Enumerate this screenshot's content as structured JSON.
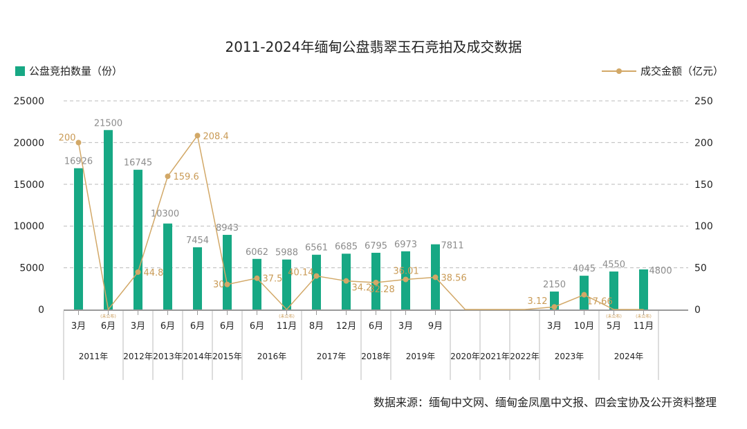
{
  "chart_data": {
    "type": "bar+line",
    "title": "2011-2024年缅甸公盘翡翠玉石竞拍及成交数据",
    "source": "数据来源：缅甸中文网、缅甸金凤凰中文报、四会宝协及公开资料整理",
    "unpublished_label": "(未公布)",
    "colors": {
      "bar": "#17a884",
      "line": "#d2a867",
      "bar_label": "#8c8c8c",
      "line_label": "#c99a55"
    },
    "left_axis": {
      "ylim": [
        0,
        25000
      ],
      "ticks": [
        "0",
        "5000",
        "10000",
        "15000",
        "20000",
        "25000"
      ]
    },
    "right_axis": {
      "ylim": [
        0,
        250
      ],
      "ticks": [
        "0",
        "50",
        "100",
        "150",
        "200",
        "250"
      ]
    },
    "grid": true,
    "legend": {
      "placement": "top",
      "bar_name": "公盘竞拍数量（份）",
      "line_name": "成交金额（亿元）"
    },
    "categories": [
      {
        "year": "2011年",
        "month": "3月"
      },
      {
        "year": "2011年",
        "month": "6月"
      },
      {
        "year": "2012年",
        "month": "3月"
      },
      {
        "year": "2013年",
        "month": "6月"
      },
      {
        "year": "2014年",
        "month": "6月"
      },
      {
        "year": "2015年",
        "month": "6月"
      },
      {
        "year": "2016年",
        "month": "6月"
      },
      {
        "year": "2016年",
        "month": "11月"
      },
      {
        "year": "2017年",
        "month": "8月"
      },
      {
        "year": "2017年",
        "month": "12月"
      },
      {
        "year": "2018年",
        "month": "6月"
      },
      {
        "year": "2019年",
        "month": "3月"
      },
      {
        "year": "2019年",
        "month": "9月"
      },
      {
        "year": "2020年",
        "month": ""
      },
      {
        "year": "2021年",
        "month": ""
      },
      {
        "year": "2022年",
        "month": ""
      },
      {
        "year": "2023年",
        "month": "3月"
      },
      {
        "year": "2023年",
        "month": "10月"
      },
      {
        "year": "2024年",
        "month": "5月"
      },
      {
        "year": "2024年",
        "month": "11月"
      }
    ],
    "years": [
      "2011年",
      "2012年",
      "2013年",
      "2014年",
      "2015年",
      "2016年",
      "2017年",
      "2018年",
      "2019年",
      "2020年",
      "2021年",
      "2022年",
      "2023年",
      "2024年"
    ],
    "series": [
      {
        "name": "公盘竞拍数量（份）",
        "type": "bar",
        "axis": "left",
        "values": [
          16926,
          21500,
          16745,
          10300,
          7454,
          8943,
          6062,
          5988,
          6561,
          6685,
          6795,
          6973,
          7811,
          null,
          null,
          null,
          2150,
          4045,
          4550,
          4800
        ]
      },
      {
        "name": "成交金额（亿元）",
        "type": "line",
        "axis": "right",
        "values": [
          200,
          0,
          44.8,
          159.6,
          208.4,
          30,
          37.5,
          0,
          40.14,
          34.2,
          32.28,
          36.01,
          38.56,
          0,
          0,
          0,
          3.12,
          17.66,
          0,
          0
        ],
        "labels": [
          "200",
          "",
          "44.8",
          "159.6",
          "208.4",
          "30",
          "37.5",
          "",
          "40.14",
          "34.2",
          "32.28",
          "36.01",
          "38.56",
          "",
          "",
          "",
          "3.12",
          "17.66",
          "",
          ""
        ],
        "unpublished": [
          false,
          true,
          false,
          false,
          false,
          false,
          false,
          true,
          false,
          false,
          false,
          false,
          false,
          false,
          false,
          false,
          false,
          false,
          true,
          true
        ]
      }
    ]
  }
}
